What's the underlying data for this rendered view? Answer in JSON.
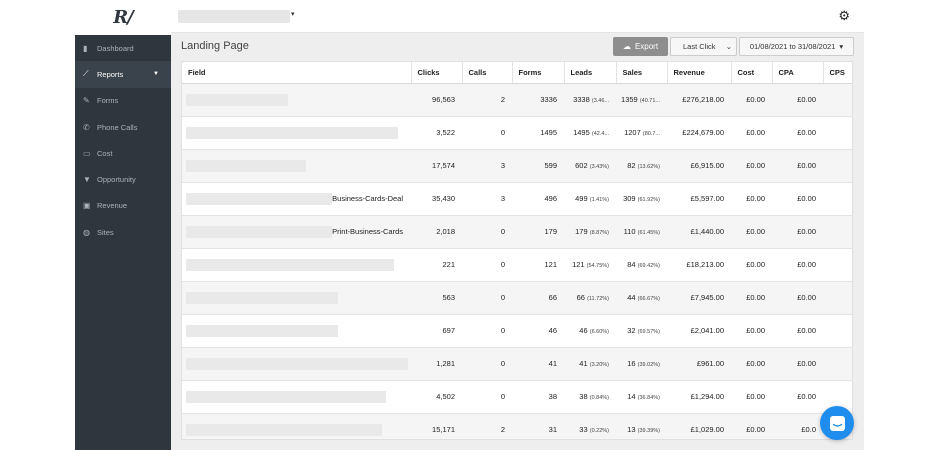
{
  "app": {
    "logo_text": "R/"
  },
  "sidebar": {
    "items": [
      {
        "label": "Dashboard",
        "icon": "▮",
        "icon_name": "dashboard-icon",
        "active": false
      },
      {
        "label": "Reports",
        "icon": "⟋",
        "icon_name": "chart-icon",
        "active": true,
        "caret": "▼"
      },
      {
        "label": "Forms",
        "icon": "✎",
        "icon_name": "pencil-icon",
        "active": false
      },
      {
        "label": "Phone Calls",
        "icon": "✆",
        "icon_name": "phone-icon",
        "active": false
      },
      {
        "label": "Cost",
        "icon": "▭",
        "icon_name": "credit-card-icon",
        "active": false
      },
      {
        "label": "Opportunity",
        "icon": "▼",
        "icon_name": "filter-icon",
        "active": false
      },
      {
        "label": "Revenue",
        "icon": "▣",
        "icon_name": "money-icon",
        "active": false
      },
      {
        "label": "Sites",
        "icon": "◍",
        "icon_name": "globe-icon",
        "active": false
      }
    ]
  },
  "header": {
    "gear_icon": "⚙",
    "site_caret": "▾"
  },
  "page": {
    "title": "Landing Page",
    "export_label": "Export",
    "export_icon": "☁",
    "attribution_value": "Last Click",
    "attribution_caret": "⌄",
    "date_range": "01/08/2021 to 31/08/2021",
    "date_caret": "▾"
  },
  "table": {
    "columns": [
      "Field",
      "Clicks",
      "Calls",
      "Forms",
      "Leads",
      "Sales",
      "Revenue",
      "Cost",
      "CPA",
      "CPS"
    ],
    "rows": [
      {
        "field": "",
        "redact": 102,
        "clicks": "96,563",
        "calls": "2",
        "forms": "3336",
        "leads": "3338",
        "leads_pct": "(3.46...",
        "sales": "1359",
        "sales_pct": "(40.71...",
        "revenue": "£276,218.00",
        "cost": "£0.00",
        "cpa": "£0.00",
        "cps": ""
      },
      {
        "field": "",
        "redact": 212,
        "clicks": "3,522",
        "calls": "0",
        "forms": "1495",
        "leads": "1495",
        "leads_pct": "(42.4...",
        "sales": "1207",
        "sales_pct": "(80.7...",
        "revenue": "£224,679.00",
        "cost": "£0.00",
        "cpa": "£0.00",
        "cps": ""
      },
      {
        "field": "",
        "redact": 120,
        "clicks": "17,574",
        "calls": "3",
        "forms": "599",
        "leads": "602",
        "leads_pct": "(3.43%)",
        "sales": "82",
        "sales_pct": "(13.62%)",
        "revenue": "£6,915.00",
        "cost": "£0.00",
        "cpa": "£0.00",
        "cps": ""
      },
      {
        "field": "Business-Cards-Deal",
        "redact": 146,
        "clicks": "35,430",
        "calls": "3",
        "forms": "496",
        "leads": "499",
        "leads_pct": "(1.41%)",
        "sales": "309",
        "sales_pct": "(61.92%)",
        "revenue": "£5,597.00",
        "cost": "£0.00",
        "cpa": "£0.00",
        "cps": ""
      },
      {
        "field": "Print-Business-Cards",
        "redact": 146,
        "clicks": "2,018",
        "calls": "0",
        "forms": "179",
        "leads": "179",
        "leads_pct": "(8.87%)",
        "sales": "110",
        "sales_pct": "(61.45%)",
        "revenue": "£1,440.00",
        "cost": "£0.00",
        "cpa": "£0.00",
        "cps": ""
      },
      {
        "field": "",
        "redact": 208,
        "clicks": "221",
        "calls": "0",
        "forms": "121",
        "leads": "121",
        "leads_pct": "(54.75%)",
        "sales": "84",
        "sales_pct": "(69.42%)",
        "revenue": "£18,213.00",
        "cost": "£0.00",
        "cpa": "£0.00",
        "cps": ""
      },
      {
        "field": "",
        "redact": 152,
        "clicks": "563",
        "calls": "0",
        "forms": "66",
        "leads": "66",
        "leads_pct": "(11.72%)",
        "sales": "44",
        "sales_pct": "(66.67%)",
        "revenue": "£7,945.00",
        "cost": "£0.00",
        "cpa": "£0.00",
        "cps": ""
      },
      {
        "field": "",
        "redact": 152,
        "clicks": "697",
        "calls": "0",
        "forms": "46",
        "leads": "46",
        "leads_pct": "(6.60%)",
        "sales": "32",
        "sales_pct": "(69.57%)",
        "revenue": "£2,041.00",
        "cost": "£0.00",
        "cpa": "£0.00",
        "cps": ""
      },
      {
        "field": "",
        "redact": 222,
        "clicks": "1,281",
        "calls": "0",
        "forms": "41",
        "leads": "41",
        "leads_pct": "(3.20%)",
        "sales": "16",
        "sales_pct": "(39.02%)",
        "revenue": "£961.00",
        "cost": "£0.00",
        "cpa": "£0.00",
        "cps": ""
      },
      {
        "field": "",
        "redact": 200,
        "clicks": "4,502",
        "calls": "0",
        "forms": "38",
        "leads": "38",
        "leads_pct": "(0.84%)",
        "sales": "14",
        "sales_pct": "(36.84%)",
        "revenue": "£1,294.00",
        "cost": "£0.00",
        "cpa": "£0.00",
        "cps": ""
      },
      {
        "field": "",
        "redact": 196,
        "clicks": "15,171",
        "calls": "2",
        "forms": "31",
        "leads": "33",
        "leads_pct": "(0.22%)",
        "sales": "13",
        "sales_pct": "(39.39%)",
        "revenue": "£1,029.00",
        "cost": "£0.00",
        "cpa": "£0.0",
        "cps": ""
      }
    ]
  },
  "colors": {
    "sidebar": "#2f363e",
    "accent": "#1f8ded",
    "export_button": "#8e8e8e"
  }
}
